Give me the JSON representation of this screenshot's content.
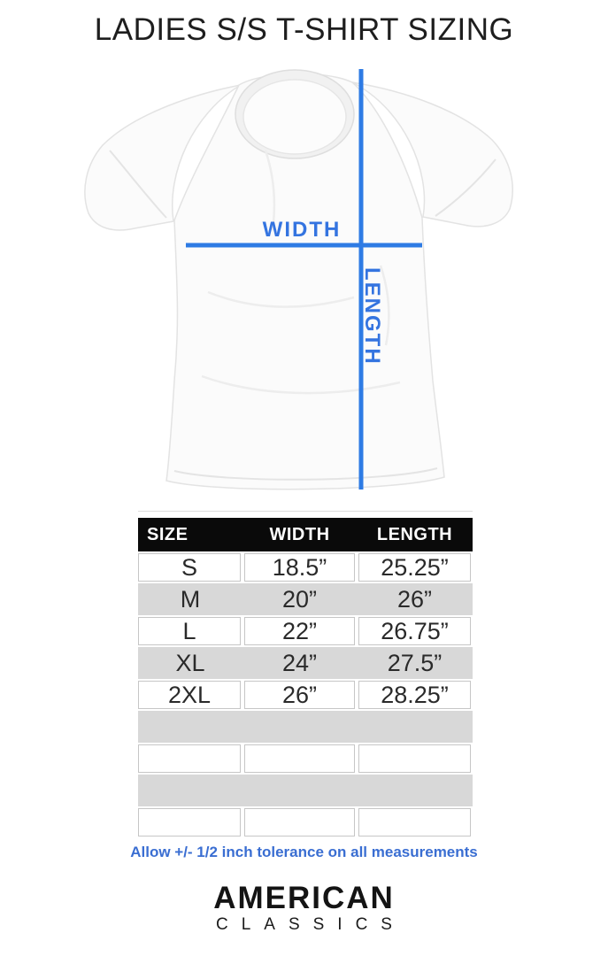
{
  "title": "LADIES S/S T-SHIRT SIZING",
  "diagram": {
    "width_label": "WIDTH",
    "length_label": "LENGTH"
  },
  "colors": {
    "measure_line_blue": "#2e7be4",
    "measure_label_blue": "#3474e0",
    "note_blue": "#3a6ed2",
    "table_stripe_gray": "#d8d8d8",
    "table_border_gray": "#c6c6c6",
    "table_header_bg": "#0a0a0a",
    "table_header_text": "#ffffff"
  },
  "size_table": {
    "headers": [
      "SIZE",
      "WIDTH",
      "LENGTH"
    ],
    "rows": [
      [
        "S",
        "18.5”",
        "25.25”"
      ],
      [
        "M",
        "20”",
        "26”"
      ],
      [
        "L",
        "22”",
        "26.75”"
      ],
      [
        "XL",
        "24”",
        "27.5”"
      ],
      [
        "2XL",
        "26”",
        "28.25”"
      ]
    ],
    "empty_rows": 4
  },
  "note": "Allow +/- 1/2 inch tolerance on all measurements",
  "brand": {
    "line1": "AMERICAN",
    "line2": "CLASSICS"
  }
}
